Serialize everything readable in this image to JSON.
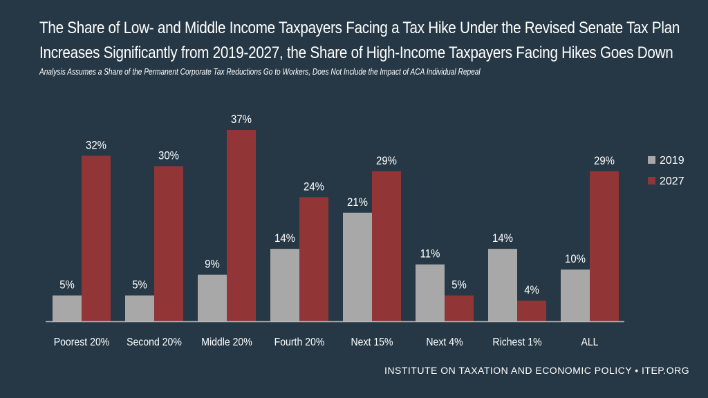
{
  "title_line1": "The Share of Low- and Middle Income Taxpayers Facing a Tax Hike Under the Revised Senate Tax Plan",
  "title_line2": "Increases Significantly from 2019-2027, the Share of High-Income Taxpayers Facing Hikes Goes Down",
  "subtitle": "Analysis Assumes a Share of the Permanent Corporate Tax Reductions Go to Workers, Does Not Include the Impact of ACA Individual Repeal",
  "source": "INSTITUTE ON TAXATION AND ECONOMIC POLICY • ITEP.ORG",
  "colors": {
    "background": "#263845",
    "series_2019": "#a8a8a8",
    "series_2027": "#913536",
    "axis": "#b5b8bb",
    "text": "#ffffff"
  },
  "chart_data": {
    "type": "bar",
    "title": "The Share of Low- and Middle Income Taxpayers Facing a Tax Hike Under the Revised Senate Tax Plan Increases Significantly from 2019-2027, the Share of High-Income Taxpayers Facing Hikes Goes Down",
    "xlabel": "",
    "ylabel": "",
    "ylim": [
      0,
      37
    ],
    "grid": false,
    "legend_position": "right",
    "categories": [
      "Poorest 20%",
      "Second 20%",
      "Middle 20%",
      "Fourth 20%",
      "Next 15%",
      "Next 4%",
      "Richest 1%",
      "ALL"
    ],
    "series": [
      {
        "name": "2019",
        "values": [
          5,
          5,
          9,
          14,
          21,
          11,
          14,
          10
        ],
        "labels": [
          "5%",
          "5%",
          "9%",
          "14%",
          "21%",
          "11%",
          "14%",
          "10%"
        ]
      },
      {
        "name": "2027",
        "values": [
          32,
          30,
          37,
          24,
          29,
          5,
          4,
          29
        ],
        "labels": [
          "32%",
          "30%",
          "37%",
          "24%",
          "29%",
          "5%",
          "4%",
          "29%"
        ]
      }
    ]
  }
}
